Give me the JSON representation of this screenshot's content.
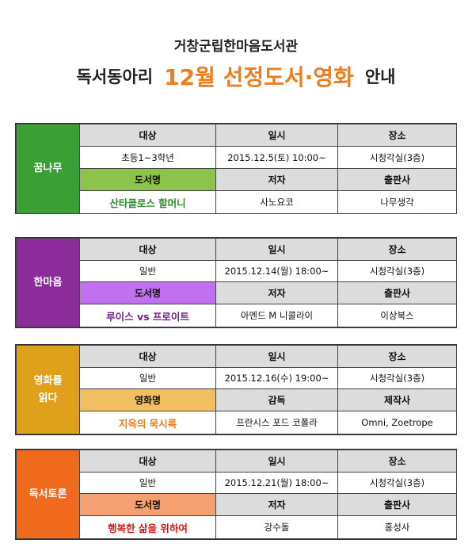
{
  "header": {
    "library": "거창군립한마음도서관",
    "title_prefix": "독서동아리",
    "title_highlight": "12월 선정도서·영화",
    "title_suffix": "안내"
  },
  "colors": {
    "title_accent": "#f07c1b",
    "header_gray": "#dcdcdc"
  },
  "sections": [
    {
      "club": "꿈나무",
      "club_color": "#3aa035",
      "label_color": "#8cc34a",
      "book_color": "#2e8b2e",
      "headers": [
        "대상",
        "일시",
        "장소"
      ],
      "target": "초등1~3학년",
      "datetime": "2015.12.5(토) 10:00~",
      "place": "시청각실(3층)",
      "label": "도서명",
      "col2_label": "저자",
      "col3_label": "출판사",
      "book": "산타클로스 할머니",
      "col2_value": "사노요코",
      "col3_value": "나무생각"
    },
    {
      "club": "한마음",
      "club_color": "#8b2c9a",
      "label_color": "#c070f0",
      "book_color": "#7a1f8c",
      "headers": [
        "대상",
        "일시",
        "장소"
      ],
      "target": "일반",
      "datetime": "2015.12.14(월) 18:00~",
      "place": "시청각실(3층)",
      "label": "도서명",
      "col2_label": "저자",
      "col3_label": "출판사",
      "book": "루이스 vs 프로이트",
      "col2_value": "아멘드 M 니콜라이",
      "col3_value": "이상북스"
    },
    {
      "club": "영화를\n읽다",
      "club_color": "#e0a11a",
      "label_color": "#f0c060",
      "book_color": "#f07c1b",
      "headers": [
        "대상",
        "일시",
        "장소"
      ],
      "target": "일반",
      "datetime": "2015.12.16(수) 19:00~",
      "place": "시청각실(3층)",
      "label": "영화명",
      "col2_label": "감독",
      "col3_label": "제작사",
      "book": "지옥의 묵시록",
      "col2_value": "프란시스 포드 코폴라",
      "col3_value": "Omni, Zoetrope"
    },
    {
      "club": "독서토론",
      "club_color": "#f06a1e",
      "label_color": "#f5a070",
      "book_color": "#d01818",
      "headers": [
        "대상",
        "일시",
        "장소"
      ],
      "target": "일반",
      "datetime": "2015.12.21(월) 18:00~",
      "place": "시청각실(3층)",
      "label": "도서명",
      "col2_label": "저자",
      "col3_label": "출판사",
      "book": "행복한 삶을 위하여",
      "col2_value": "강수돌",
      "col3_value": "홍성사"
    }
  ]
}
